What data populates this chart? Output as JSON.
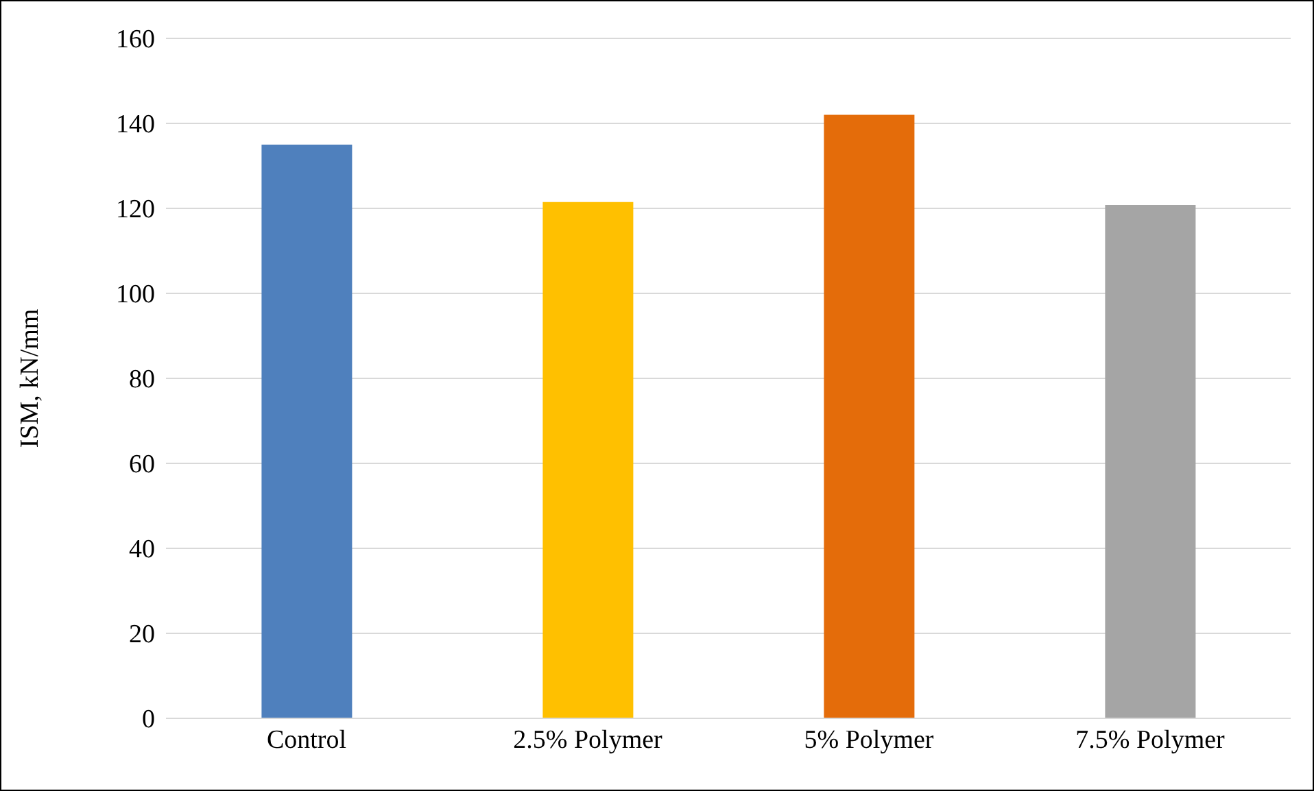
{
  "chart_data": {
    "type": "bar",
    "ylabel": "ISM, kN/mm",
    "categories": [
      "Control",
      "2.5% Polymer",
      "5% Polymer",
      "7.5% Polymer"
    ],
    "values": [
      135,
      121.5,
      142,
      120.8
    ],
    "colors": [
      "#4f80bd",
      "#ffc000",
      "#e46c0a",
      "#a5a5a5"
    ],
    "ylim": [
      0,
      160
    ],
    "yticks": [
      0,
      20,
      40,
      60,
      80,
      100,
      120,
      140,
      160
    ],
    "grid": "y"
  }
}
